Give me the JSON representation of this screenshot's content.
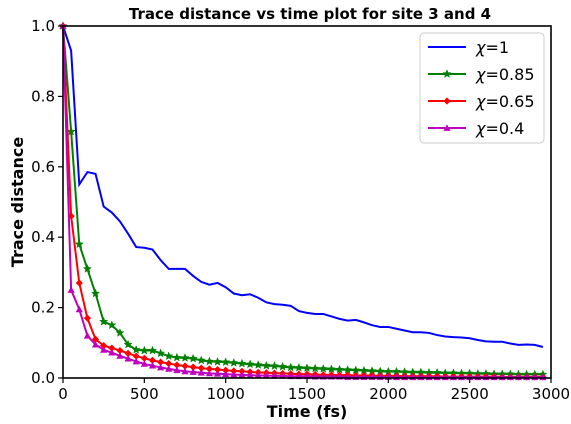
{
  "chart_data": {
    "type": "line",
    "title": "Trace distance vs time plot for site 3 and 4",
    "xlabel": "Time (fs)",
    "ylabel": "Trace distance",
    "xlim": [
      0,
      3000
    ],
    "ylim": [
      0,
      1.0
    ],
    "xticks": [
      "0",
      "500",
      "1000",
      "1500",
      "2000",
      "2500",
      "3000"
    ],
    "yticks": [
      "0.0",
      "0.2",
      "0.4",
      "0.6",
      "0.8",
      "1.0"
    ],
    "grid": false,
    "legend_position": "top-right",
    "x": [
      0,
      50,
      100,
      150,
      200,
      250,
      300,
      350,
      400,
      450,
      500,
      550,
      600,
      650,
      700,
      750,
      800,
      850,
      900,
      950,
      1000,
      1050,
      1100,
      1150,
      1200,
      1250,
      1300,
      1350,
      1400,
      1450,
      1500,
      1550,
      1600,
      1650,
      1700,
      1750,
      1800,
      1850,
      1900,
      1950,
      2000,
      2050,
      2100,
      2150,
      2200,
      2250,
      2300,
      2350,
      2400,
      2450,
      2500,
      2550,
      2600,
      2650,
      2700,
      2750,
      2800,
      2850,
      2900,
      2950
    ],
    "series": [
      {
        "name": "χ=1",
        "legend_prefix": "χ",
        "legend_suffix": "=1",
        "color": "#0000ff",
        "marker": "none",
        "values": [
          1.0,
          0.93,
          0.55,
          0.585,
          0.58,
          0.487,
          0.47,
          0.445,
          0.41,
          0.372,
          0.37,
          0.365,
          0.335,
          0.31,
          0.31,
          0.31,
          0.29,
          0.273,
          0.265,
          0.27,
          0.258,
          0.24,
          0.235,
          0.238,
          0.228,
          0.215,
          0.21,
          0.208,
          0.205,
          0.19,
          0.185,
          0.182,
          0.182,
          0.175,
          0.168,
          0.163,
          0.165,
          0.158,
          0.15,
          0.145,
          0.145,
          0.14,
          0.135,
          0.13,
          0.13,
          0.128,
          0.122,
          0.118,
          0.116,
          0.115,
          0.113,
          0.108,
          0.104,
          0.103,
          0.103,
          0.098,
          0.094,
          0.095,
          0.094,
          0.088
        ]
      },
      {
        "name": "χ=0.85",
        "legend_prefix": "χ",
        "legend_suffix": "=0.85",
        "color": "#008000",
        "marker": "star",
        "values": [
          1.0,
          0.7,
          0.38,
          0.31,
          0.24,
          0.16,
          0.15,
          0.128,
          0.095,
          0.08,
          0.078,
          0.078,
          0.07,
          0.062,
          0.058,
          0.057,
          0.055,
          0.05,
          0.047,
          0.046,
          0.045,
          0.043,
          0.041,
          0.039,
          0.037,
          0.035,
          0.034,
          0.032,
          0.03,
          0.029,
          0.028,
          0.027,
          0.026,
          0.025,
          0.024,
          0.023,
          0.022,
          0.021,
          0.02,
          0.019,
          0.018,
          0.018,
          0.017,
          0.016,
          0.016,
          0.015,
          0.015,
          0.014,
          0.014,
          0.013,
          0.013,
          0.012,
          0.012,
          0.011,
          0.011,
          0.011,
          0.01,
          0.01,
          0.01,
          0.01
        ]
      },
      {
        "name": "χ=0.65",
        "legend_prefix": "χ",
        "legend_suffix": "=0.65",
        "color": "#ff0000",
        "marker": "diamond",
        "values": [
          1.0,
          0.46,
          0.27,
          0.17,
          0.11,
          0.092,
          0.085,
          0.078,
          0.07,
          0.062,
          0.056,
          0.05,
          0.045,
          0.041,
          0.037,
          0.034,
          0.031,
          0.028,
          0.026,
          0.024,
          0.022,
          0.02,
          0.019,
          0.017,
          0.016,
          0.015,
          0.014,
          0.013,
          0.012,
          0.011,
          0.011,
          0.01,
          0.009,
          0.009,
          0.008,
          0.008,
          0.007,
          0.007,
          0.007,
          0.006,
          0.006,
          0.006,
          0.005,
          0.005,
          0.005,
          0.005,
          0.005,
          0.004,
          0.004,
          0.004,
          0.004,
          0.004,
          0.004,
          0.004,
          0.003,
          0.003,
          0.003,
          0.003,
          0.003,
          0.003
        ]
      },
      {
        "name": "χ=0.4",
        "legend_prefix": "χ",
        "legend_suffix": "=0.4",
        "color": "#bf00bf",
        "marker": "triangle",
        "values": [
          1.0,
          0.25,
          0.195,
          0.12,
          0.095,
          0.08,
          0.072,
          0.063,
          0.055,
          0.047,
          0.04,
          0.035,
          0.03,
          0.026,
          0.022,
          0.019,
          0.017,
          0.015,
          0.013,
          0.012,
          0.011,
          0.01,
          0.009,
          0.008,
          0.007,
          0.007,
          0.006,
          0.006,
          0.005,
          0.005,
          0.005,
          0.004,
          0.004,
          0.004,
          0.004,
          0.003,
          0.003,
          0.003,
          0.003,
          0.003,
          0.003,
          0.002,
          0.002,
          0.002,
          0.002,
          0.002,
          0.002,
          0.002,
          0.002,
          0.002,
          0.002,
          0.002,
          0.002,
          0.002,
          0.002,
          0.002,
          0.002,
          0.002,
          0.002,
          0.002
        ]
      }
    ]
  }
}
